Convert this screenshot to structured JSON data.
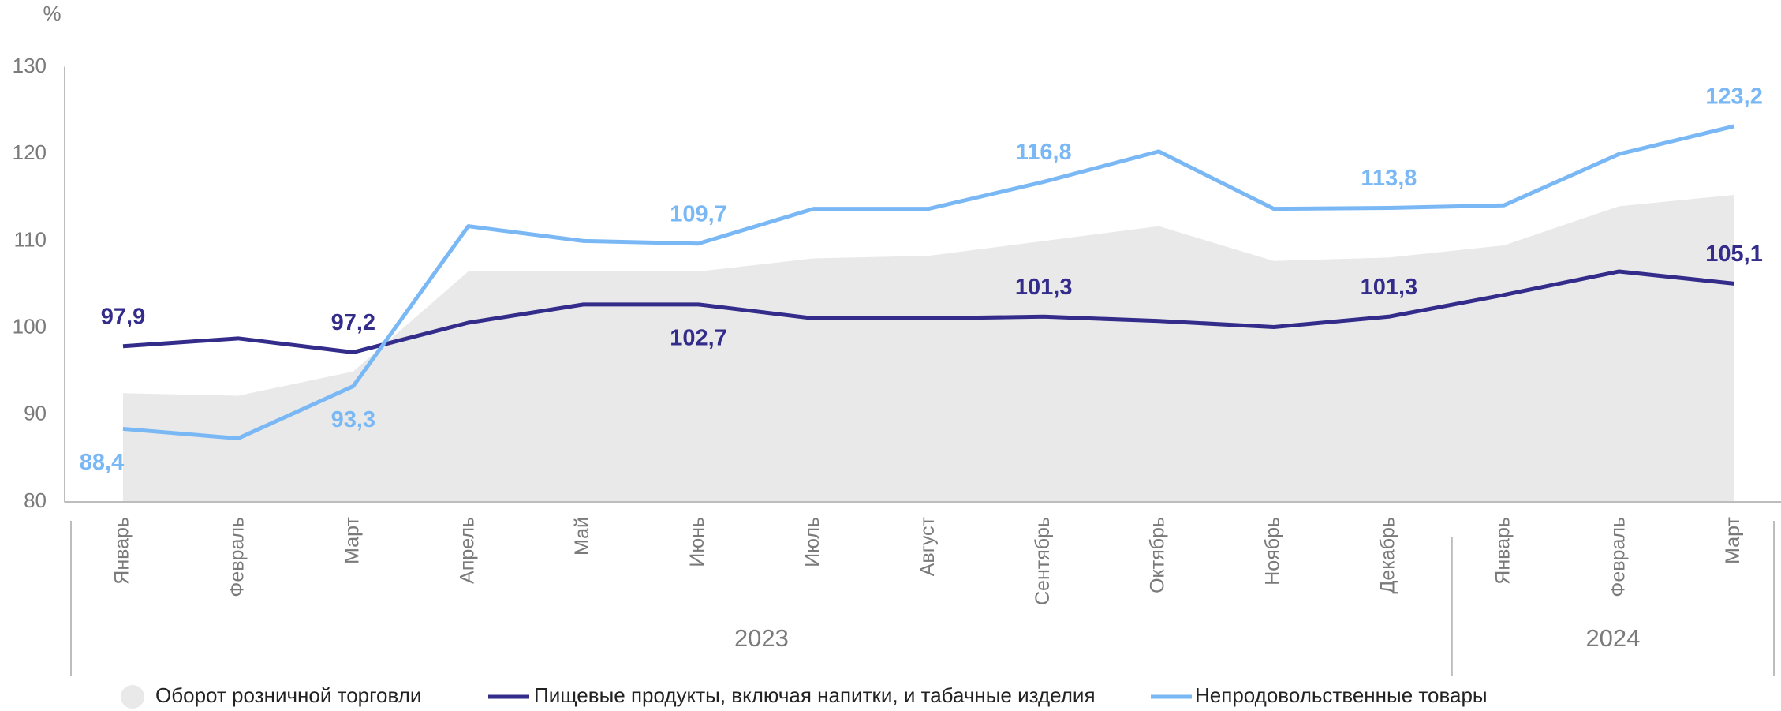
{
  "chart_data": {
    "type": "line",
    "ylabel": "%",
    "groups": [
      {
        "name": "2023",
        "categories": [
          "Январь",
          "Февраль",
          "Март",
          "Апрель",
          "Май",
          "Июнь",
          "Июль",
          "Август",
          "Сентябрь",
          "Октябрь",
          "Ноябрь",
          "Декабрь"
        ]
      },
      {
        "name": "2024",
        "categories": [
          "Январь",
          "Февраль",
          "Март"
        ]
      }
    ],
    "ylim": [
      80,
      130
    ],
    "yticks": [
      80,
      90,
      100,
      110,
      120,
      130
    ],
    "grid": false,
    "legend": "bottom",
    "series": [
      {
        "name": "Оборот розничной торговли",
        "kind": "area",
        "color": "#e9e9e9",
        "values": [
          92.5,
          92.2,
          95,
          106.5,
          106.5,
          106.5,
          108,
          108.3,
          110,
          111.7,
          107.7,
          108.1,
          109.5,
          114,
          115.3
        ]
      },
      {
        "name": "Пищевые продукты, включая напитки, и табачные изделия",
        "kind": "line",
        "color": "#332c8a",
        "values": [
          97.9,
          98.8,
          97.2,
          100.6,
          102.7,
          102.7,
          101.1,
          101.1,
          101.3,
          100.8,
          100.1,
          101.3,
          103.8,
          106.5,
          105.1
        ],
        "value_labels": [
          "97,9",
          null,
          "97,2",
          null,
          null,
          "102,7",
          null,
          null,
          "101,3",
          null,
          null,
          "101,3",
          null,
          null,
          "105,1"
        ]
      },
      {
        "name": "Непродовольственные товары",
        "kind": "line",
        "color": "#7ab8f5",
        "values": [
          88.4,
          87.3,
          93.3,
          111.7,
          110,
          109.7,
          113.7,
          113.7,
          116.8,
          120.3,
          113.7,
          113.8,
          114.1,
          120,
          123.2
        ],
        "value_labels": [
          "88,4",
          null,
          "93,3",
          null,
          null,
          "109,7",
          null,
          null,
          "116,8",
          null,
          null,
          "113,8",
          null,
          null,
          "123,2"
        ]
      }
    ]
  }
}
